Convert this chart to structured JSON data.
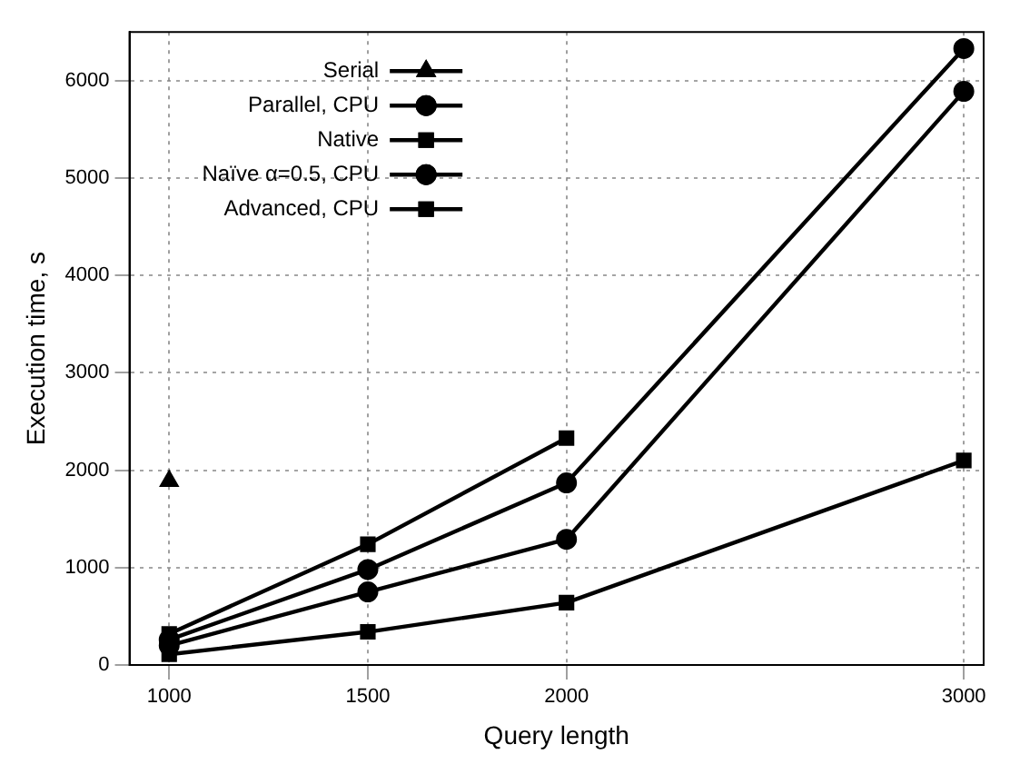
{
  "chart_data": {
    "type": "line",
    "xlabel": "Query length",
    "ylabel": "Execution time, s",
    "x": [
      1000,
      1500,
      2000,
      3000
    ],
    "xlim": [
      900,
      3050
    ],
    "xticks": [
      1000,
      1500,
      2000,
      3000
    ],
    "ylim": [
      0,
      6500
    ],
    "yticks": [
      0,
      1000,
      2000,
      3000,
      4000,
      5000,
      6000
    ],
    "grid": true,
    "legend": "top left",
    "line_style": "solid",
    "series": [
      {
        "name": "Serial",
        "color": "#000000",
        "marker": "triangle",
        "values": [
          1890,
          null,
          null,
          null
        ]
      },
      {
        "name": "Parallel, CPU",
        "color": "#000000",
        "marker": "circle",
        "values": [
          260,
          980,
          1870,
          6330
        ]
      },
      {
        "name": "Native",
        "color": "#000000",
        "marker": "square",
        "values": [
          320,
          1240,
          2330,
          null
        ]
      },
      {
        "name": "Naïve α=0.5, CPU",
        "color": "#000000",
        "marker": "circle",
        "values": [
          200,
          750,
          1290,
          5890
        ]
      },
      {
        "name": "Advanced, CPU",
        "color": "#000000",
        "marker": "square",
        "values": [
          110,
          340,
          640,
          2100
        ]
      }
    ]
  }
}
